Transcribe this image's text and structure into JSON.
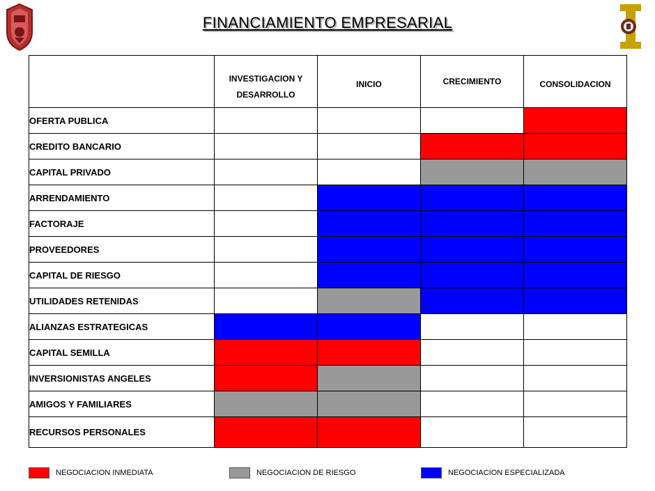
{
  "title": "FINANCIAMIENTO EMPRESARIAL",
  "colors": {
    "red": "#ff0000",
    "gray": "#999999",
    "blue": "#0000ff",
    "white": "#ffffff"
  },
  "columns": [
    "",
    "INVESTIGACION Y DESARROLLO",
    "INICIO",
    "CRECIMIENTO",
    "CONSOLIDACION"
  ],
  "rows": [
    {
      "label": "OFERTA PUBLICA",
      "cells": [
        "white",
        "white",
        "white",
        "red"
      ]
    },
    {
      "label": "CREDITO BANCARIO",
      "cells": [
        "white",
        "white",
        "red",
        "red"
      ]
    },
    {
      "label": "CAPITAL PRIVADO",
      "cells": [
        "white",
        "white",
        "gray",
        "gray"
      ]
    },
    {
      "label": "ARRENDAMIENTO",
      "cells": [
        "white",
        "blue",
        "blue",
        "blue"
      ]
    },
    {
      "label": "FACTORAJE",
      "cells": [
        "white",
        "blue",
        "blue",
        "blue"
      ]
    },
    {
      "label": "PROVEEDORES",
      "cells": [
        "white",
        "blue",
        "blue",
        "blue"
      ]
    },
    {
      "label": "CAPITAL DE RIESGO",
      "cells": [
        "white",
        "blue",
        "blue",
        "blue"
      ]
    },
    {
      "label": "UTILIDADES RETENIDAS",
      "cells": [
        "white",
        "gray",
        "blue",
        "blue"
      ]
    },
    {
      "label": "ALIANZAS ESTRATEGICAS",
      "cells": [
        "blue",
        "blue",
        "white",
        "white"
      ]
    },
    {
      "label": "CAPITAL SEMILLA",
      "cells": [
        "red",
        "red",
        "white",
        "white"
      ]
    },
    {
      "label": "INVERSIONISTAS ANGELES",
      "cells": [
        "red",
        "gray",
        "white",
        "white"
      ]
    },
    {
      "label": "AMIGOS Y FAMILIARES",
      "cells": [
        "gray",
        "gray",
        "white",
        "white"
      ]
    },
    {
      "label": "RECURSOS PERSONALES",
      "cells": [
        "red",
        "red",
        "white",
        "white"
      ]
    }
  ],
  "legend": [
    {
      "color": "red",
      "label": "NEGOCIACION  INMEDIATA"
    },
    {
      "color": "gray",
      "label": "NEGOCIACION  DE RIESGO"
    },
    {
      "color": "blue",
      "label": "NEGOCIACION  ESPECIALIZADA"
    }
  ]
}
